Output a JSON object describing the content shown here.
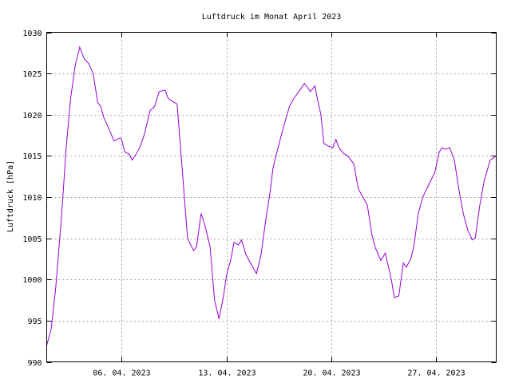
{
  "chart_data": {
    "type": "line",
    "title": "Luftdruck im Monat April 2023",
    "xlabel": "",
    "ylabel": "Luftdruck [hPa]",
    "ylim": [
      990,
      1030
    ],
    "yticks": [
      990,
      995,
      1000,
      1005,
      1010,
      1015,
      1020,
      1025,
      1030
    ],
    "xlim_day": [
      1,
      31
    ],
    "xticks": [
      {
        "day": 6,
        "label": "06. 04. 2023"
      },
      {
        "day": 13,
        "label": "13. 04. 2023"
      },
      {
        "day": 20,
        "label": "20. 04. 2023"
      },
      {
        "day": 27,
        "label": "27. 04. 2023"
      }
    ],
    "grid": true,
    "color": "#9400d3",
    "series": [
      {
        "x": [
          1.0,
          1.3,
          1.6,
          2.0,
          2.3,
          2.6,
          2.9,
          3.2,
          3.5,
          3.8,
          4.1,
          4.4,
          4.6,
          4.8,
          5.1,
          5.5,
          5.9,
          6.0,
          6.2,
          6.5,
          6.7,
          7.0,
          7.2,
          7.5,
          7.9,
          8.2,
          8.5,
          8.9,
          9.1,
          9.4,
          9.7,
          10.1,
          10.4,
          10.8,
          11.0,
          11.3,
          11.5,
          11.7,
          11.9,
          12.2,
          12.5,
          12.8,
          13.0,
          13.3,
          13.5,
          13.8,
          14.0,
          14.3,
          14.6,
          15.0,
          15.3,
          15.6,
          15.9,
          16.1,
          16.3,
          16.8,
          17.2,
          17.5,
          17.9,
          18.2,
          18.6,
          18.9,
          19.0,
          19.3,
          19.5,
          19.8,
          20.1,
          20.3,
          20.5,
          20.8,
          21.1,
          21.5,
          21.8,
          22.1,
          22.4,
          22.7,
          22.9,
          23.3,
          23.6,
          24.0,
          24.2,
          24.5,
          24.8,
          25.0,
          25.3,
          25.5,
          25.8,
          26.1,
          26.5,
          26.9,
          27.2,
          27.4,
          27.6,
          27.9,
          28.2,
          28.5,
          28.8,
          29.1,
          29.4,
          29.6,
          29.9,
          30.2,
          30.6,
          31.0
        ],
        "y": [
          992.0,
          994.0,
          999.0,
          1008.0,
          1016.0,
          1022.0,
          1026.0,
          1028.2,
          1026.8,
          1026.2,
          1025.0,
          1021.5,
          1021.0,
          1019.7,
          1018.5,
          1016.8,
          1017.2,
          1017.0,
          1015.5,
          1015.2,
          1014.5,
          1015.3,
          1016.0,
          1017.5,
          1020.5,
          1021.0,
          1022.8,
          1023.0,
          1022.0,
          1021.6,
          1021.3,
          1012.0,
          1005.0,
          1003.5,
          1004.0,
          1008.0,
          1007.0,
          1005.5,
          1004.0,
          997.5,
          995.2,
          998.0,
          1000.5,
          1002.5,
          1004.5,
          1004.2,
          1004.8,
          1003.0,
          1002.0,
          1000.7,
          1003.0,
          1007.0,
          1010.5,
          1013.5,
          1015.0,
          1018.5,
          1021.0,
          1022.0,
          1023.0,
          1023.8,
          1022.8,
          1023.5,
          1022.5,
          1020.0,
          1016.5,
          1016.2,
          1016.0,
          1017.0,
          1016.0,
          1015.3,
          1015.0,
          1014.0,
          1011.0,
          1010.0,
          1009.0,
          1005.5,
          1004.0,
          1002.3,
          1003.2,
          1000.0,
          997.8,
          998.0,
          1002.0,
          1001.5,
          1002.5,
          1004.0,
          1008.0,
          1010.0,
          1011.5,
          1013.0,
          1015.5,
          1016.0,
          1015.8,
          1016.0,
          1014.5,
          1011.0,
          1008.0,
          1006.0,
          1004.8,
          1005.0,
          1009.0,
          1012.0,
          1014.5,
          1015.0
        ]
      }
    ]
  }
}
